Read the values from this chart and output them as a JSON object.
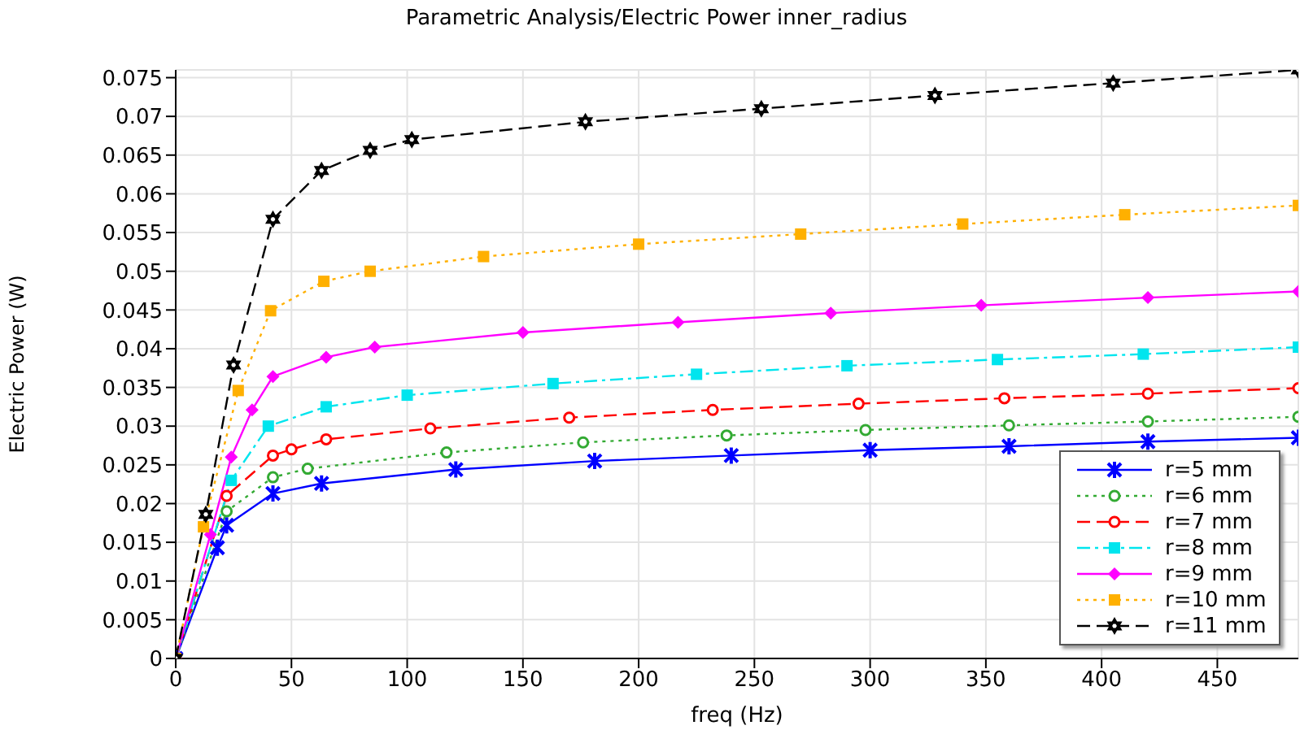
{
  "chart_data": {
    "type": "line",
    "title": "Parametric Analysis/Electric Power inner_radius",
    "xlabel": "freq (Hz)",
    "ylabel": "Electric Power (W)",
    "xlim": [
      0,
      485
    ],
    "xticks": [
      0,
      50,
      100,
      150,
      200,
      250,
      300,
      350,
      400,
      450
    ],
    "ylim": [
      0,
      0.076
    ],
    "yticks": [
      0,
      0.005,
      0.01,
      0.015,
      0.02,
      0.025,
      0.03,
      0.035,
      0.04,
      0.045,
      0.05,
      0.055,
      0.06,
      0.065,
      0.07,
      0.075
    ],
    "grid": true,
    "legend": "bottom right",
    "series": [
      {
        "name": "r=5 mm",
        "color": "#0000ff",
        "marker": "cross",
        "line_style": "solid",
        "x": [
          0,
          18,
          22,
          42,
          63,
          121,
          181,
          240,
          300,
          360,
          420,
          485
        ],
        "values": [
          0,
          0.0143,
          0.0172,
          0.0213,
          0.0226,
          0.0244,
          0.0255,
          0.0262,
          0.0269,
          0.0274,
          0.028,
          0.0285
        ]
      },
      {
        "name": "r=6 mm",
        "color": "#33aa33",
        "marker": "circle",
        "line_style": "dotted",
        "x": [
          0,
          22,
          42,
          57,
          117,
          176,
          238,
          298,
          360,
          420,
          485
        ],
        "values": [
          0,
          0.019,
          0.0234,
          0.0245,
          0.0266,
          0.0279,
          0.0288,
          0.0295,
          0.0301,
          0.0306,
          0.0312
        ]
      },
      {
        "name": "r=7 mm",
        "color": "#ff0000",
        "marker": "circle",
        "line_style": "dashed",
        "x": [
          0,
          22,
          42,
          50,
          65,
          110,
          170,
          232,
          295,
          358,
          420,
          485
        ],
        "values": [
          0,
          0.021,
          0.0262,
          0.027,
          0.0283,
          0.0297,
          0.0311,
          0.0321,
          0.0329,
          0.0336,
          0.0342,
          0.0349
        ]
      },
      {
        "name": "r=8 mm",
        "color": "#00e5ee",
        "marker": "square",
        "line_style": "dashdot",
        "x": [
          0,
          24,
          40,
          65,
          100,
          163,
          225,
          290,
          355,
          418,
          485
        ],
        "values": [
          0,
          0.023,
          0.03,
          0.0325,
          0.034,
          0.0355,
          0.0367,
          0.0378,
          0.0386,
          0.0393,
          0.0402
        ]
      },
      {
        "name": "r=9 mm",
        "color": "#ff00ff",
        "marker": "diamond",
        "line_style": "solid",
        "x": [
          0,
          15,
          24,
          33,
          42,
          65,
          86,
          150,
          217,
          283,
          348,
          420,
          485
        ],
        "values": [
          0,
          0.016,
          0.026,
          0.0321,
          0.0364,
          0.0389,
          0.0402,
          0.0421,
          0.0434,
          0.0446,
          0.0456,
          0.0466,
          0.0474
        ]
      },
      {
        "name": "r=10 mm",
        "color": "#ffb000",
        "marker": "square",
        "line_style": "dotted",
        "x": [
          0,
          12,
          27,
          41,
          64,
          84,
          133,
          200,
          270,
          340,
          410,
          485
        ],
        "values": [
          0,
          0.017,
          0.0346,
          0.0449,
          0.0487,
          0.05,
          0.0519,
          0.0535,
          0.0548,
          0.0561,
          0.0573,
          0.0585
        ]
      },
      {
        "name": "r=11 mm",
        "color": "#000000",
        "marker": "star",
        "line_style": "dashed",
        "x": [
          0,
          13,
          25,
          42,
          63,
          84,
          102,
          177,
          253,
          328,
          405,
          485
        ],
        "values": [
          0,
          0.0186,
          0.0379,
          0.0567,
          0.063,
          0.0656,
          0.067,
          0.0693,
          0.071,
          0.0727,
          0.0743,
          0.076
        ]
      }
    ]
  }
}
